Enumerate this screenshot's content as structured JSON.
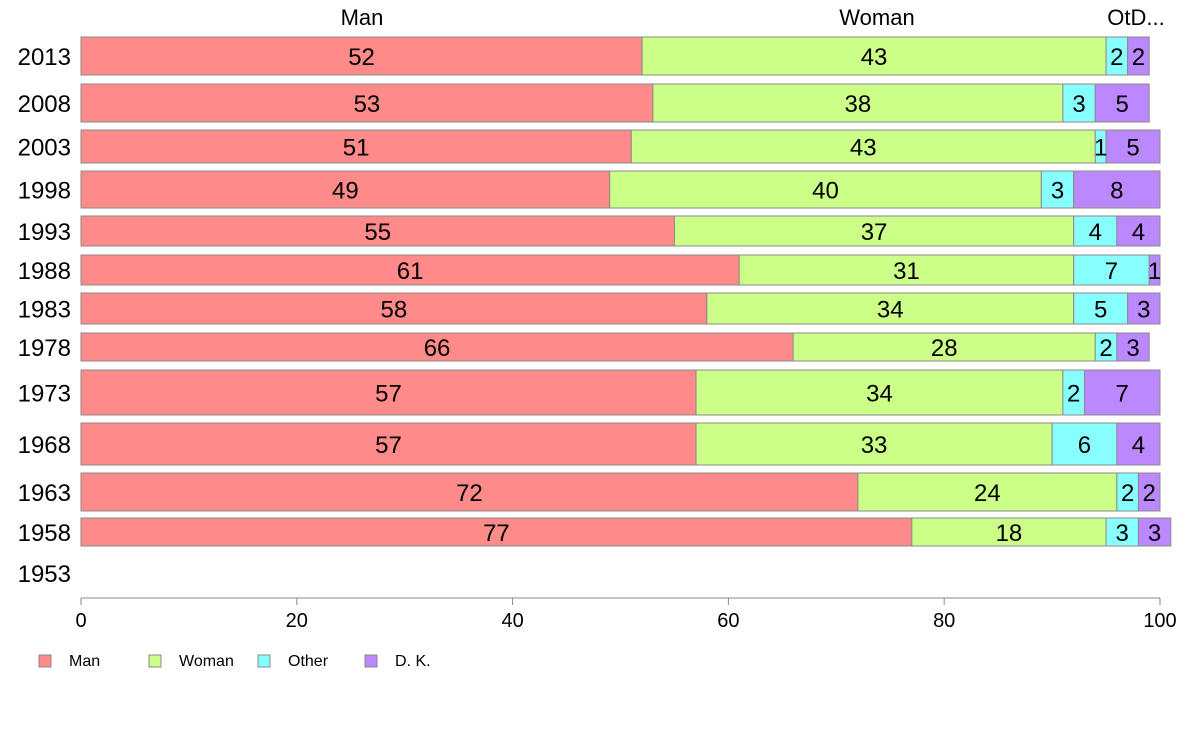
{
  "chart_data": {
    "type": "bar",
    "orientation": "horizontal",
    "stacked": true,
    "categories": [
      "2013",
      "2008",
      "2003",
      "1998",
      "1993",
      "1988",
      "1983",
      "1978",
      "1973",
      "1968",
      "1963",
      "1958",
      "1953"
    ],
    "series": [
      {
        "name": "Man",
        "color": "#ff8a8a",
        "values": [
          52,
          53,
          51,
          49,
          55,
          61,
          58,
          66,
          57,
          57,
          72,
          77,
          null
        ]
      },
      {
        "name": "Woman",
        "color": "#ccff88",
        "values": [
          43,
          38,
          43,
          40,
          37,
          31,
          34,
          28,
          34,
          33,
          24,
          18,
          null
        ]
      },
      {
        "name": "Other",
        "color": "#88ffff",
        "values": [
          2,
          3,
          1,
          3,
          4,
          7,
          5,
          2,
          2,
          6,
          2,
          3,
          null
        ]
      },
      {
        "name": "D. K.",
        "color": "#bb88ff",
        "values": [
          2,
          5,
          5,
          8,
          4,
          1,
          3,
          3,
          7,
          4,
          2,
          3,
          null
        ]
      }
    ],
    "column_headers": [
      "Man",
      "Woman",
      "OtD..."
    ],
    "xlim": [
      0,
      100
    ],
    "xticks": [
      "0",
      "20",
      "40",
      "60",
      "80",
      "100"
    ],
    "grid": false,
    "legend": {
      "position": "bottom-left",
      "entries": [
        "Man",
        "Woman",
        "Other",
        "D. K."
      ]
    }
  }
}
